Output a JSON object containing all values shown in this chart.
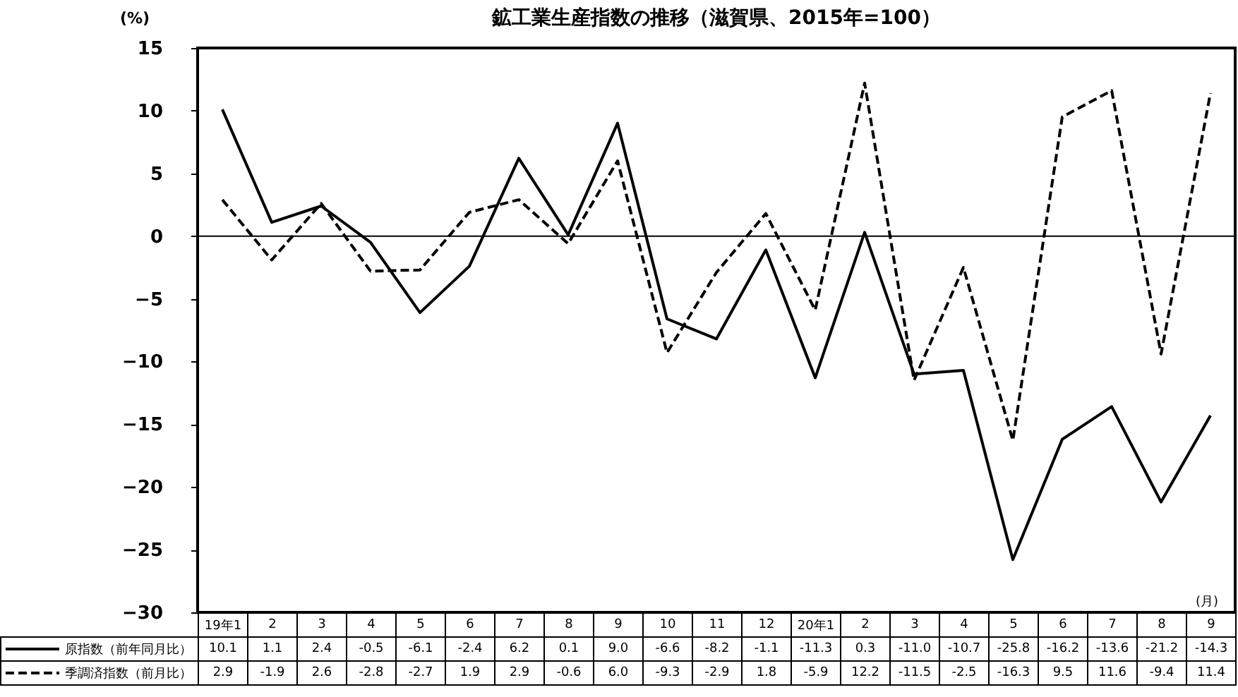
{
  "chart_data": {
    "type": "line",
    "title": "鉱工業生産指数の推移（滋賀県、2015年=100）",
    "ylabel": "(%)",
    "annotations": [
      "(月)"
    ],
    "categories": [
      "19年1",
      "2",
      "3",
      "4",
      "5",
      "6",
      "7",
      "8",
      "9",
      "10",
      "11",
      "12",
      "20年1",
      "2",
      "3",
      "4",
      "5",
      "6",
      "7",
      "8",
      "9"
    ],
    "series": [
      {
        "name": "原指数（前年同月比）",
        "color": "#000000",
        "line_style": "solid",
        "values": [
          10.1,
          1.1,
          2.4,
          -0.5,
          -6.1,
          -2.4,
          6.2,
          0.1,
          9.0,
          -6.6,
          -8.2,
          -1.1,
          -11.3,
          0.3,
          -11.0,
          -10.7,
          -25.8,
          -16.2,
          -13.6,
          -21.2,
          -14.3
        ],
        "value_labels": [
          "10.1",
          "1.1",
          "2.4",
          "-0.5",
          "-6.1",
          "-2.4",
          "6.2",
          "0.1",
          "9.0",
          "-6.6",
          "-8.2",
          "-1.1",
          "-11.3",
          "0.3",
          "-11.0",
          "-10.7",
          "-25.8",
          "-16.2",
          "-13.6",
          "-21.2",
          "-14.3"
        ]
      },
      {
        "name": "季調済指数（前月比）",
        "color": "#000000",
        "line_style": "dashed",
        "values": [
          2.9,
          -1.9,
          2.6,
          -2.8,
          -2.7,
          1.9,
          2.9,
          -0.6,
          6.0,
          -9.3,
          -2.9,
          1.8,
          -5.9,
          12.2,
          -11.5,
          -2.5,
          -16.3,
          9.5,
          11.6,
          -9.4,
          11.4
        ],
        "value_labels": [
          "2.9",
          "-1.9",
          "2.6",
          "-2.8",
          "-2.7",
          "1.9",
          "2.9",
          "-0.6",
          "6.0",
          "-9.3",
          "-2.9",
          "1.8",
          "-5.9",
          "12.2",
          "-11.5",
          "-2.5",
          "-16.3",
          "9.5",
          "11.6",
          "-9.4",
          "11.4"
        ]
      }
    ],
    "ylim": [
      -30,
      15
    ],
    "yticks": [
      -30,
      -25,
      -20,
      -15,
      -10,
      -5,
      0,
      5,
      10,
      15
    ],
    "legend": "bottom",
    "ref_lines": [
      {
        "axis": "y",
        "value": 0
      }
    ]
  }
}
